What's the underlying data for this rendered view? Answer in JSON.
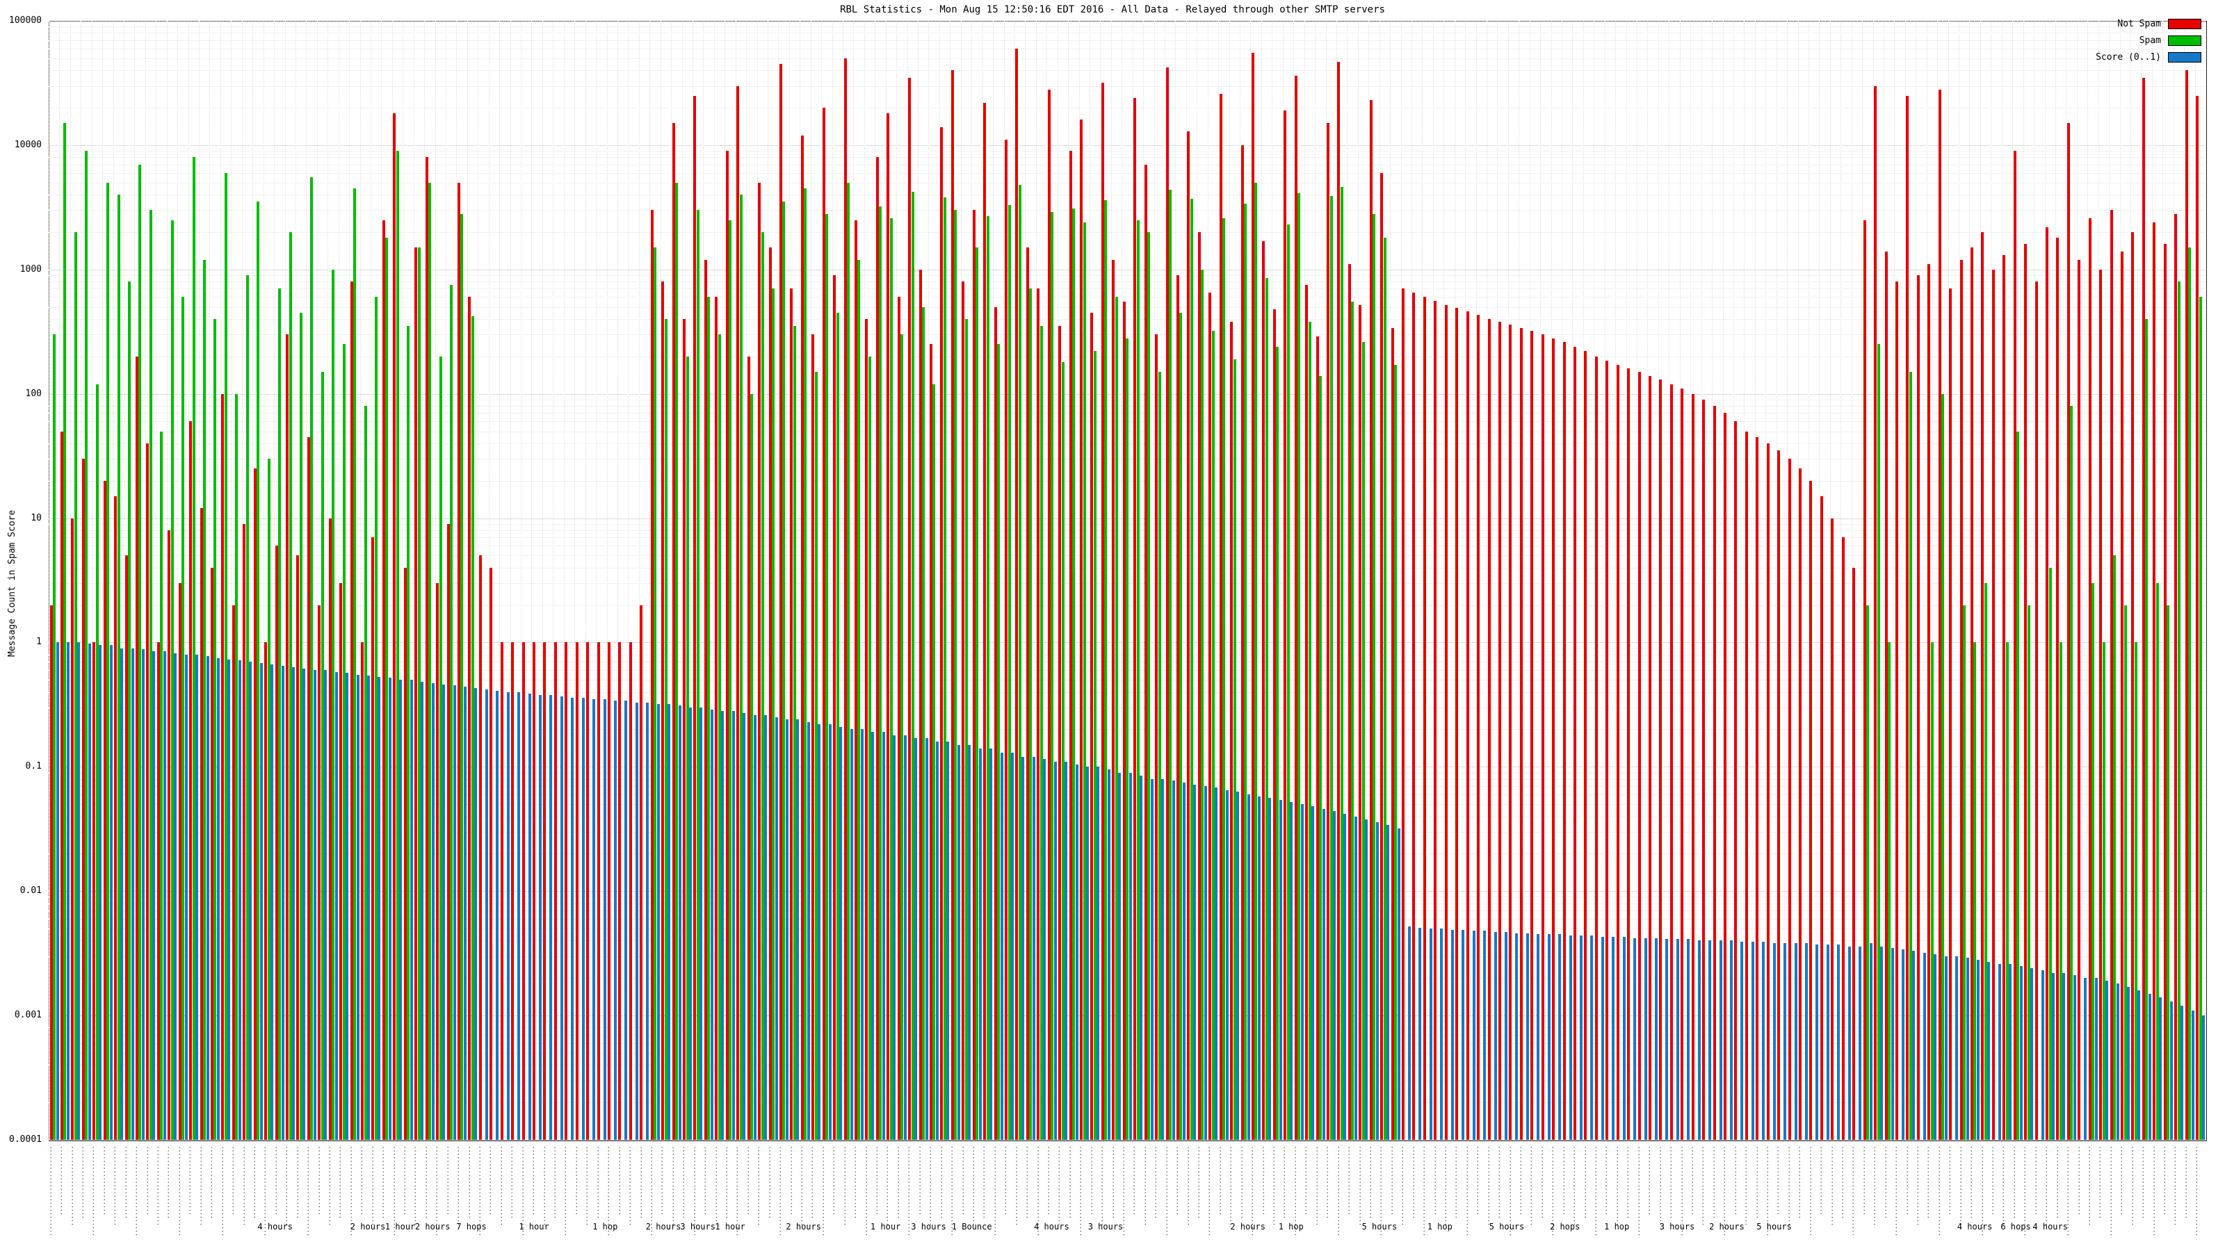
{
  "title": "RBL Statistics - Mon Aug 15 12:50:16 EDT 2016 - All Data - Relayed through other SMTP servers",
  "y_axis": {
    "label": "Message Count in Spam Score",
    "ticks": [
      "100000",
      "10000",
      "1000",
      "100",
      "10",
      "1",
      "0.1",
      "0.01",
      "0.001",
      "0.0001"
    ]
  },
  "legend": [
    {
      "label": "Not Spam",
      "color": "#e60000"
    },
    {
      "label": "Spam",
      "color": "#00bd00"
    },
    {
      "label": "Score (0..1)",
      "color": "#1878c8"
    }
  ],
  "chart_data": {
    "type": "bar",
    "scale": "log",
    "ylim": [
      0.0001,
      100000
    ],
    "grid": true,
    "legend_position": "top-right",
    "title": "RBL Statistics - Mon Aug 15 12:50:16 EDT 2016 - All Data - Relayed through other SMTP servers",
    "ylabel": "Message Count in Spam Score",
    "series": [
      {
        "name": "Not Spam",
        "color": "#e60000",
        "values": [
          2,
          50,
          10,
          30,
          1,
          20,
          15,
          5,
          200,
          40,
          1,
          8,
          3,
          60,
          12,
          4,
          100,
          2,
          9,
          25,
          1,
          6,
          300,
          5,
          45,
          2,
          10,
          3,
          800,
          1,
          7,
          2500,
          18000,
          4,
          1500,
          8000,
          3,
          9,
          5000,
          600,
          5,
          4,
          1,
          1,
          1,
          1,
          1,
          1,
          1,
          1,
          1,
          1,
          1,
          1,
          1,
          2,
          3000,
          800,
          15000,
          400,
          25000,
          1200,
          600,
          9000,
          30000,
          200,
          5000,
          1500,
          45000,
          700,
          12000,
          300,
          20000,
          900,
          50000,
          2500,
          400,
          8000,
          18000,
          600,
          35000,
          1000,
          250,
          14000,
          40000,
          800,
          3000,
          22000,
          500,
          11000,
          60000,
          1500,
          700,
          28000,
          350,
          9000,
          16000,
          450,
          32000,
          1200,
          550,
          24000,
          7000,
          300,
          42000,
          900,
          13000,
          2000,
          650,
          26000,
          380,
          10000,
          55000,
          1700,
          480,
          19000,
          36000,
          750,
          290,
          15000,
          47000,
          1100,
          520,
          23000,
          6000,
          340,
          700,
          650,
          600,
          560,
          520,
          490,
          460,
          430,
          400,
          380,
          360,
          340,
          320,
          300,
          280,
          260,
          240,
          220,
          200,
          185,
          170,
          160,
          150,
          140,
          130,
          120,
          110,
          100,
          90,
          80,
          70,
          60,
          50,
          45,
          40,
          35,
          30,
          25,
          20,
          15,
          10,
          7,
          4,
          2500,
          30000,
          1400,
          800,
          25000,
          900,
          1100,
          28000,
          700,
          1200,
          1500,
          2000,
          1000,
          1300,
          9000,
          1600,
          800,
          2200,
          1800,
          15000,
          1200,
          2600,
          1000,
          3000,
          1400,
          2000,
          35000,
          2400,
          1600,
          2800,
          40000,
          25000
        ]
      },
      {
        "name": "Spam",
        "color": "#00bd00",
        "values": [
          300,
          15000,
          2000,
          9000,
          120,
          5000,
          4000,
          800,
          7000,
          3000,
          50,
          2500,
          600,
          8000,
          1200,
          400,
          6000,
          100,
          900,
          3500,
          30,
          700,
          2000,
          450,
          5500,
          150,
          1000,
          250,
          4500,
          80,
          600,
          1800,
          9000,
          350,
          1500,
          5000,
          200,
          750,
          2800,
          420,
          0,
          0,
          0,
          0,
          0,
          0,
          0,
          0,
          0,
          0,
          0,
          0,
          0,
          0,
          0,
          0,
          1500,
          400,
          5000,
          200,
          3000,
          600,
          300,
          2500,
          4000,
          100,
          2000,
          700,
          3500,
          350,
          4500,
          150,
          2800,
          450,
          5000,
          1200,
          200,
          3200,
          2600,
          300,
          4200,
          500,
          120,
          3800,
          3000,
          400,
          1500,
          2700,
          250,
          3300,
          4800,
          700,
          350,
          2900,
          180,
          3100,
          2400,
          220,
          3600,
          600,
          280,
          2500,
          2000,
          150,
          4400,
          450,
          3700,
          1000,
          320,
          2600,
          190,
          3400,
          5000,
          850,
          240,
          2300,
          4100,
          380,
          140,
          3900,
          4600,
          550,
          260,
          2800,
          1800,
          170,
          0,
          0,
          0,
          0,
          0,
          0,
          0,
          0,
          0,
          0,
          0,
          0,
          0,
          0,
          0,
          0,
          0,
          0,
          0,
          0,
          0,
          0,
          0,
          0,
          0,
          0,
          0,
          0,
          0,
          0,
          0,
          0,
          0,
          0,
          0,
          0,
          0,
          0,
          0,
          0,
          0,
          0,
          0,
          2,
          250,
          1,
          0,
          150,
          0,
          1,
          100,
          0,
          2,
          1,
          3,
          0,
          1,
          50,
          2,
          0,
          4,
          1,
          80,
          0,
          3,
          1,
          5,
          2,
          1,
          400,
          3,
          2,
          800,
          1500,
          600
        ]
      },
      {
        "name": "Score (0..1)",
        "color": "#1878c8",
        "values": [
          1.0,
          1.0,
          1.0,
          0.98,
          0.95,
          0.95,
          0.9,
          0.9,
          0.88,
          0.85,
          0.85,
          0.82,
          0.8,
          0.8,
          0.78,
          0.75,
          0.73,
          0.72,
          0.7,
          0.68,
          0.67,
          0.65,
          0.63,
          0.62,
          0.6,
          0.6,
          0.58,
          0.57,
          0.55,
          0.54,
          0.53,
          0.52,
          0.5,
          0.5,
          0.48,
          0.47,
          0.46,
          0.45,
          0.44,
          0.43,
          0.42,
          0.41,
          0.4,
          0.4,
          0.39,
          0.38,
          0.38,
          0.37,
          0.36,
          0.36,
          0.35,
          0.35,
          0.34,
          0.34,
          0.33,
          0.33,
          0.32,
          0.32,
          0.31,
          0.3,
          0.3,
          0.29,
          0.28,
          0.28,
          0.27,
          0.26,
          0.26,
          0.25,
          0.24,
          0.24,
          0.23,
          0.22,
          0.22,
          0.21,
          0.2,
          0.2,
          0.19,
          0.19,
          0.18,
          0.18,
          0.17,
          0.17,
          0.16,
          0.16,
          0.15,
          0.15,
          0.14,
          0.14,
          0.13,
          0.13,
          0.12,
          0.12,
          0.115,
          0.11,
          0.11,
          0.105,
          0.1,
          0.1,
          0.095,
          0.09,
          0.09,
          0.085,
          0.08,
          0.08,
          0.078,
          0.075,
          0.072,
          0.07,
          0.068,
          0.065,
          0.063,
          0.06,
          0.058,
          0.056,
          0.054,
          0.052,
          0.05,
          0.048,
          0.046,
          0.044,
          0.042,
          0.04,
          0.038,
          0.036,
          0.034,
          0.032,
          0.0052,
          0.0051,
          0.005,
          0.005,
          0.0049,
          0.0049,
          0.0048,
          0.0048,
          0.0047,
          0.0047,
          0.0046,
          0.0046,
          0.0045,
          0.0045,
          0.0045,
          0.0044,
          0.0044,
          0.0044,
          0.0043,
          0.0043,
          0.0043,
          0.0042,
          0.0042,
          0.0042,
          0.0041,
          0.0041,
          0.0041,
          0.004,
          0.004,
          0.004,
          0.004,
          0.0039,
          0.0039,
          0.0039,
          0.0038,
          0.0038,
          0.0038,
          0.0038,
          0.0037,
          0.0037,
          0.0037,
          0.0036,
          0.0036,
          0.0038,
          0.0036,
          0.0035,
          0.0034,
          0.0033,
          0.0032,
          0.0031,
          0.003,
          0.003,
          0.0029,
          0.0028,
          0.0027,
          0.0026,
          0.0026,
          0.0025,
          0.0024,
          0.0023,
          0.0022,
          0.0022,
          0.0021,
          0.002,
          0.002,
          0.0019,
          0.0018,
          0.0017,
          0.0016,
          0.0015,
          0.0014,
          0.0013,
          0.0012,
          0.0011,
          0.001
        ]
      }
    ],
    "x_tick_placeholders": [
      "··························",
      "····················",
      "·······················",
      "·····················"
    ],
    "x_region_labels": [
      {
        "pos": 0.105,
        "text": "4 hours"
      },
      {
        "pos": 0.148,
        "text": "2 hours"
      },
      {
        "pos": 0.163,
        "text": "1 hour"
      },
      {
        "pos": 0.178,
        "text": "2 hours"
      },
      {
        "pos": 0.196,
        "text": "7 hops"
      },
      {
        "pos": 0.225,
        "text": "1 hour"
      },
      {
        "pos": 0.258,
        "text": "1 hop"
      },
      {
        "pos": 0.285,
        "text": "2 hours"
      },
      {
        "pos": 0.301,
        "text": "3 hours"
      },
      {
        "pos": 0.316,
        "text": "1 hour"
      },
      {
        "pos": 0.35,
        "text": "2 hours"
      },
      {
        "pos": 0.388,
        "text": "1 hour"
      },
      {
        "pos": 0.408,
        "text": "3 hours"
      },
      {
        "pos": 0.428,
        "text": "1 Bounce"
      },
      {
        "pos": 0.465,
        "text": "4 hours"
      },
      {
        "pos": 0.49,
        "text": "3 hours"
      },
      {
        "pos": 0.556,
        "text": "2 hours"
      },
      {
        "pos": 0.576,
        "text": "1 hop"
      },
      {
        "pos": 0.617,
        "text": "5 hours"
      },
      {
        "pos": 0.645,
        "text": "1 hop"
      },
      {
        "pos": 0.676,
        "text": "5 hours"
      },
      {
        "pos": 0.703,
        "text": "2 hops"
      },
      {
        "pos": 0.727,
        "text": "1 hop"
      },
      {
        "pos": 0.755,
        "text": "3 hours"
      },
      {
        "pos": 0.778,
        "text": "2 hours"
      },
      {
        "pos": 0.8,
        "text": "5 hours"
      },
      {
        "pos": 0.893,
        "text": "4 hours"
      },
      {
        "pos": 0.912,
        "text": "6 hops"
      },
      {
        "pos": 0.928,
        "text": "4 hours"
      }
    ]
  }
}
